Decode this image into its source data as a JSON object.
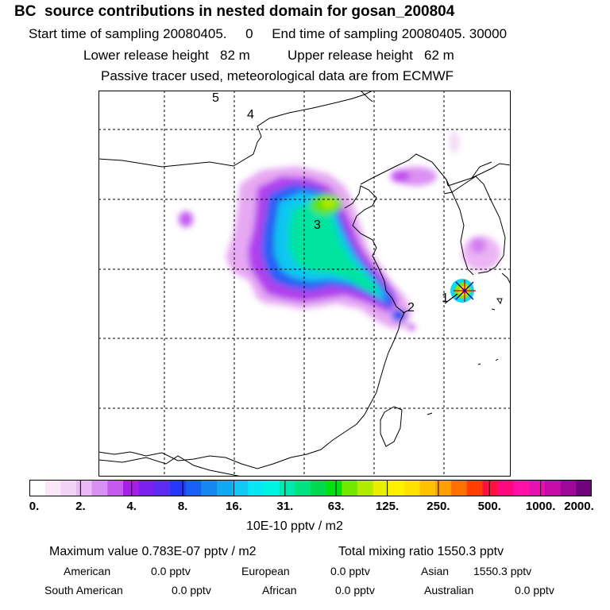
{
  "title": "BC  source contributions in nested domain for gosan_200804",
  "sampling": {
    "start_label": "Start time of sampling",
    "start_value": "20080405.     0",
    "end_label": "End time of sampling",
    "end_value": "20080405. 30000"
  },
  "release": {
    "lower_label": "Lower release height",
    "lower_value": "82 m",
    "upper_label": "Upper release height",
    "upper_value": "62 m"
  },
  "tracer_note": "Passive tracer used, meteorological data are from ECMWF",
  "map": {
    "markers": [
      {
        "label": "1"
      },
      {
        "label": "2"
      },
      {
        "label": "3"
      },
      {
        "label": "4"
      },
      {
        "label": "5"
      }
    ]
  },
  "colorbar": {
    "ticks": [
      "0.",
      "2.",
      "4.",
      "8.",
      "16.",
      "31.",
      "63.",
      "125.",
      "250.",
      "500.",
      "1000.",
      "2000."
    ],
    "colors": [
      "#ffffff",
      "#f8e8f8",
      "#f2d2f6",
      "#eab8f5",
      "#d98ef2",
      "#c45cef",
      "#a61ee8",
      "#7a20ee",
      "#5a2cf4",
      "#2838f8",
      "#1a60f4",
      "#1888f0",
      "#10a8f0",
      "#10c8f2",
      "#08e8f4",
      "#00f4e0",
      "#00e8b0",
      "#00e480",
      "#00d850",
      "#00e010",
      "#70e800",
      "#b0ec00",
      "#e8f000",
      "#fff000",
      "#ffe000",
      "#ffc000",
      "#ffa000",
      "#ff7000",
      "#ff4000",
      "#ff1040",
      "#ff0880",
      "#ff10a8",
      "#e810b0",
      "#c80ca8",
      "#9c0898",
      "#70047c"
    ],
    "unit": "10E-10 pptv / m2"
  },
  "stats": {
    "max_label": "Maximum value",
    "max_value": "0.783E-07 pptv / m2",
    "total_label": "Total mixing ratio",
    "total_value": "1550.3 pptv"
  },
  "regions": [
    {
      "name": "American",
      "value": "0.0 pptv"
    },
    {
      "name": "European",
      "value": "0.0 pptv"
    },
    {
      "name": "Asian",
      "value": "1550.3 pptv"
    },
    {
      "name": "South American",
      "value": "0.0 pptv"
    },
    {
      "name": "African",
      "value": "0.0 pptv"
    },
    {
      "name": "Australian",
      "value": "0.0 pptv"
    }
  ],
  "colors": {
    "ocean": "#ffffff",
    "coast": "#000000",
    "grid": "#000000"
  }
}
